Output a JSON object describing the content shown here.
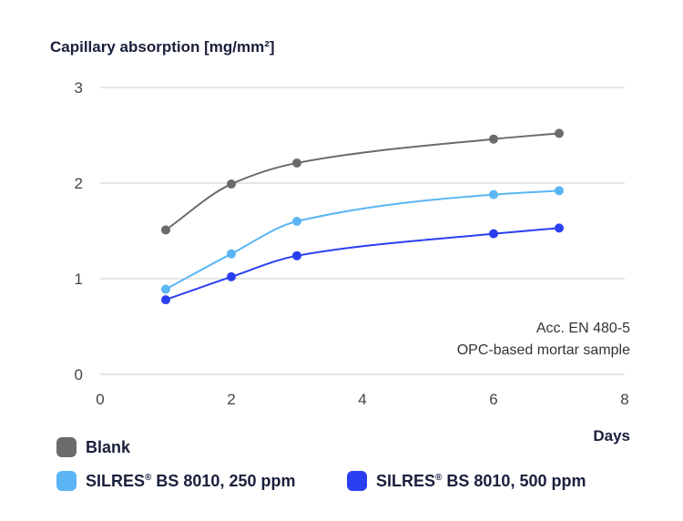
{
  "chart_data": {
    "type": "line",
    "ylabel": "Capillary absorption [mg/mm²]",
    "xlabel": "Days",
    "xlim": [
      0,
      8
    ],
    "ylim": [
      0,
      3
    ],
    "xticks": [
      "0",
      "2",
      "4",
      "6",
      "8"
    ],
    "yticks": [
      "0",
      "1",
      "2",
      "3"
    ],
    "grid": "horizontal",
    "annotations": [
      "Acc. EN 480-5",
      "OPC-based mortar sample"
    ],
    "x": [
      1,
      2,
      3,
      6,
      7
    ],
    "series": [
      {
        "name": "Blank",
        "color": "#6b6b6b",
        "values": [
          1.51,
          1.99,
          2.21,
          2.46,
          2.52
        ]
      },
      {
        "name": "SILRES® BS 8010, 250 ppm",
        "color": "#5bb5f5",
        "values": [
          0.89,
          1.26,
          1.6,
          1.88,
          1.92
        ]
      },
      {
        "name": "SILRES® BS 8010, 500 ppm",
        "color": "#2a3ff0",
        "values": [
          0.78,
          1.02,
          1.24,
          1.47,
          1.53
        ]
      }
    ]
  },
  "legend": [
    {
      "label": "Blank",
      "color": "#6b6b6b"
    },
    {
      "label_main": "SILRES",
      "label_sup": "®",
      "label_rest": " BS 8010, 250 ppm",
      "color": "#5bb5f5"
    },
    {
      "label_main": "SILRES",
      "label_sup": "®",
      "label_rest": " BS 8010, 500 ppm",
      "color": "#2a3ff0"
    }
  ]
}
